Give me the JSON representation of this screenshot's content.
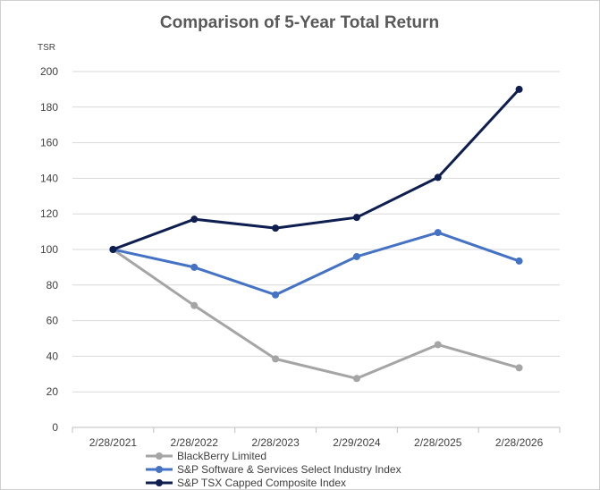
{
  "chart_data": {
    "type": "line",
    "title": "Comparison of 5-Year Total Return",
    "ylabel": "TSR",
    "xlabel": "",
    "categories": [
      "2/28/2021",
      "2/28/2022",
      "2/28/2023",
      "2/29/2024",
      "2/28/2025",
      "2/28/2026"
    ],
    "ylim": [
      0,
      200
    ],
    "yticks": [
      0,
      20,
      40,
      60,
      80,
      100,
      120,
      140,
      160,
      180,
      200
    ],
    "grid": true,
    "legend_position": "bottom-left",
    "series": [
      {
        "name": "BlackBerry Limited",
        "color": "#a5a5a5",
        "values": [
          100,
          68.5,
          38.5,
          27.5,
          46.5,
          33.5
        ]
      },
      {
        "name": "S&P Software & Services Select Industry Index",
        "color": "#4472c4",
        "values": [
          100,
          90,
          74.5,
          96,
          109.5,
          93.5
        ]
      },
      {
        "name": "S&P TSX Capped Composite Index",
        "color": "#0d1e4f",
        "values": [
          100,
          117,
          112,
          118,
          140.5,
          190
        ]
      }
    ]
  }
}
